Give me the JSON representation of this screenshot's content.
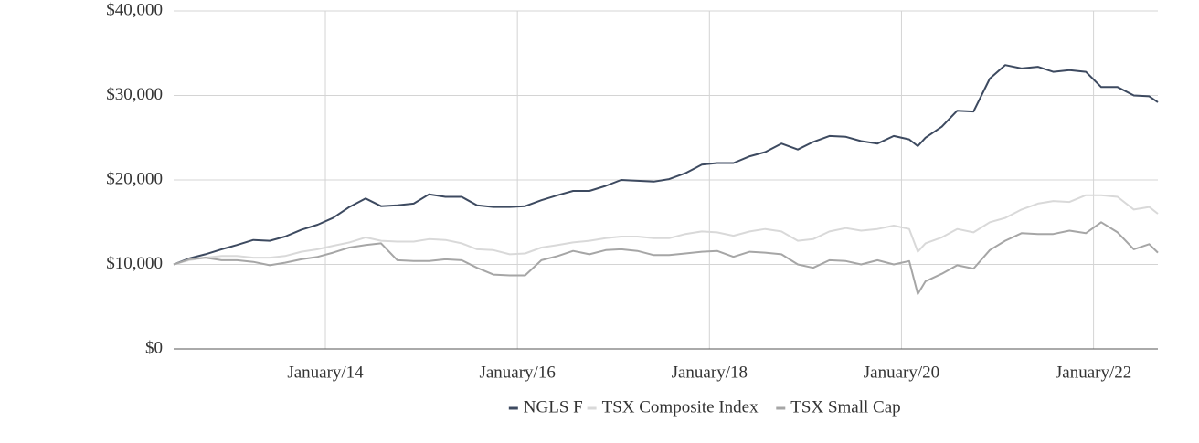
{
  "chart_data": {
    "type": "line",
    "x": [
      2012.42,
      2012.58,
      2012.75,
      2012.92,
      2013.08,
      2013.25,
      2013.42,
      2013.58,
      2013.75,
      2013.92,
      2014.08,
      2014.25,
      2014.42,
      2014.58,
      2014.75,
      2014.92,
      2015.08,
      2015.25,
      2015.42,
      2015.58,
      2015.75,
      2015.92,
      2016.08,
      2016.25,
      2016.42,
      2016.58,
      2016.75,
      2016.92,
      2017.08,
      2017.25,
      2017.42,
      2017.58,
      2017.75,
      2017.92,
      2018.08,
      2018.25,
      2018.42,
      2018.58,
      2018.75,
      2018.92,
      2019.08,
      2019.25,
      2019.42,
      2019.58,
      2019.75,
      2019.92,
      2020.08,
      2020.17,
      2020.25,
      2020.42,
      2020.58,
      2020.75,
      2020.92,
      2021.08,
      2021.25,
      2021.42,
      2021.58,
      2021.75,
      2021.92,
      2022.08,
      2022.25,
      2022.42,
      2022.58,
      2022.67
    ],
    "series": [
      {
        "name": "NGLS F",
        "color": "#3d4a60",
        "values": [
          10000,
          10700,
          11200,
          11800,
          12300,
          12900,
          12800,
          13300,
          14100,
          14700,
          15500,
          16800,
          17800,
          16900,
          17000,
          17200,
          18300,
          18000,
          18000,
          17000,
          16800,
          16800,
          16900,
          17600,
          18200,
          18700,
          18700,
          19300,
          20000,
          19900,
          19800,
          20100,
          20800,
          21800,
          22000,
          22000,
          22800,
          23300,
          24300,
          23600,
          24500,
          25200,
          25100,
          24600,
          24300,
          25200,
          24800,
          24000,
          25000,
          26300,
          28200,
          28100,
          32000,
          33600,
          33200,
          33400,
          32800,
          33000,
          32800,
          31000,
          31000,
          30000,
          29900,
          29200
        ]
      },
      {
        "name": "TSX Composite Index",
        "color": "#d9d9d9",
        "values": [
          10000,
          10500,
          10800,
          11000,
          11000,
          10800,
          10800,
          11000,
          11500,
          11800,
          12200,
          12600,
          13200,
          12800,
          12700,
          12700,
          13000,
          12900,
          12500,
          11800,
          11700,
          11200,
          11300,
          12000,
          12300,
          12600,
          12800,
          13100,
          13300,
          13300,
          13100,
          13100,
          13600,
          13900,
          13800,
          13400,
          13900,
          14200,
          13900,
          12800,
          13000,
          13900,
          14300,
          14000,
          14200,
          14600,
          14200,
          11500,
          12500,
          13200,
          14200,
          13800,
          15000,
          15500,
          16500,
          17200,
          17500,
          17400,
          18200,
          18200,
          18000,
          16500,
          16800,
          16000
        ]
      },
      {
        "name": "TSX Small Cap",
        "color": "#a6a6a6",
        "values": [
          10000,
          10600,
          10800,
          10500,
          10500,
          10300,
          9900,
          10200,
          10600,
          10900,
          11400,
          12000,
          12300,
          12500,
          10500,
          10400,
          10400,
          10600,
          10500,
          9600,
          8800,
          8700,
          8700,
          10500,
          11000,
          11600,
          11200,
          11700,
          11800,
          11600,
          11100,
          11100,
          11300,
          11500,
          11600,
          10900,
          11500,
          11400,
          11200,
          10000,
          9600,
          10500,
          10400,
          10000,
          10500,
          10000,
          10400,
          6500,
          8000,
          8900,
          9900,
          9500,
          11700,
          12800,
          13700,
          13600,
          13600,
          14000,
          13700,
          15000,
          13800,
          11800,
          12400,
          11400
        ]
      }
    ],
    "xlim": [
      2012.42,
      2022.67
    ],
    "xticks": [
      {
        "value": 2014,
        "label": "January/14"
      },
      {
        "value": 2016,
        "label": "January/16"
      },
      {
        "value": 2018,
        "label": "January/18"
      },
      {
        "value": 2020,
        "label": "January/20"
      },
      {
        "value": 2022,
        "label": "January/22"
      }
    ],
    "ylim": [
      0,
      40000
    ],
    "yticks": [
      {
        "value": 0,
        "label": "$0"
      },
      {
        "value": 10000,
        "label": "$10,000"
      },
      {
        "value": 20000,
        "label": "$20,000"
      },
      {
        "value": 30000,
        "label": "$30,000"
      },
      {
        "value": 40000,
        "label": "$40,000"
      }
    ],
    "grid": true,
    "legend": "bottom"
  }
}
